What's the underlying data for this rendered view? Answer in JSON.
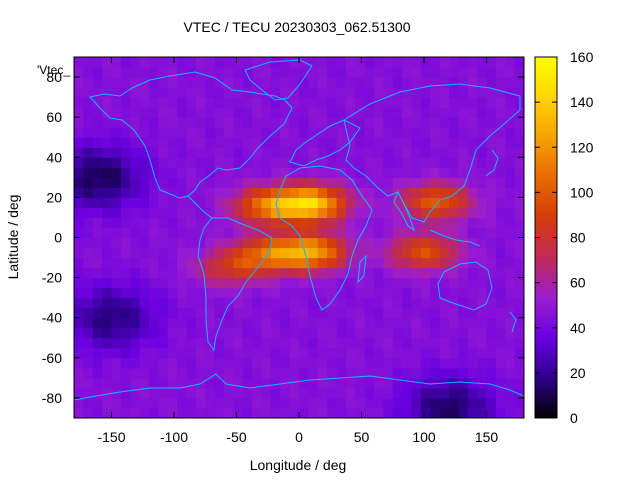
{
  "chart_data": {
    "type": "heatmap",
    "title": "VTEC / TECU 20230303_062.51300",
    "xlabel": "Longitude / deg",
    "ylabel": "Latitude / deg",
    "legend_label": "'Vtec_",
    "xlim": [
      -180,
      180
    ],
    "ylim": [
      -90,
      90
    ],
    "xticks": [
      -150,
      -100,
      -50,
      0,
      50,
      100,
      150
    ],
    "yticks": [
      -80,
      -60,
      -40,
      -20,
      0,
      20,
      40,
      60,
      80
    ],
    "colorbar": {
      "range": [
        0,
        160
      ],
      "ticks": [
        0,
        20,
        40,
        60,
        80,
        100,
        120,
        140,
        160
      ],
      "palette": [
        "#000000",
        "#2e008c",
        "#6a00e0",
        "#9b1dd0",
        "#c02a55",
        "#d43c0a",
        "#e86a00",
        "#f5a200",
        "#ffd400",
        "#ffff00"
      ]
    },
    "coastline_color": "#18b4ff",
    "background_level": 45,
    "features": [
      {
        "name": "equatorial-anomaly-north-africa",
        "lon": 10,
        "lat": 17,
        "peak": 135
      },
      {
        "name": "equatorial-anomaly-south-africa",
        "lon": 10,
        "lat": -7,
        "peak": 120
      },
      {
        "name": "crest-west-africa",
        "lon": -25,
        "lat": 16,
        "peak": 105
      },
      {
        "name": "crest-south-atlantic",
        "lon": -25,
        "lat": -8,
        "peak": 95
      },
      {
        "name": "crest-indian-ocean-north",
        "lon": 110,
        "lat": 18,
        "peak": 100
      },
      {
        "name": "crest-indian-ocean-south",
        "lon": 100,
        "lat": -7,
        "peak": 95
      },
      {
        "name": "south-america-band",
        "lon": -55,
        "lat": -15,
        "peak": 80
      },
      {
        "name": "low-pacific-north",
        "lon": -160,
        "lat": 30,
        "peak": 10
      },
      {
        "name": "low-pacific-south",
        "lon": -150,
        "lat": -40,
        "peak": 15
      },
      {
        "name": "low-antarctic",
        "lon": 120,
        "lat": -85,
        "peak": 12
      }
    ]
  }
}
